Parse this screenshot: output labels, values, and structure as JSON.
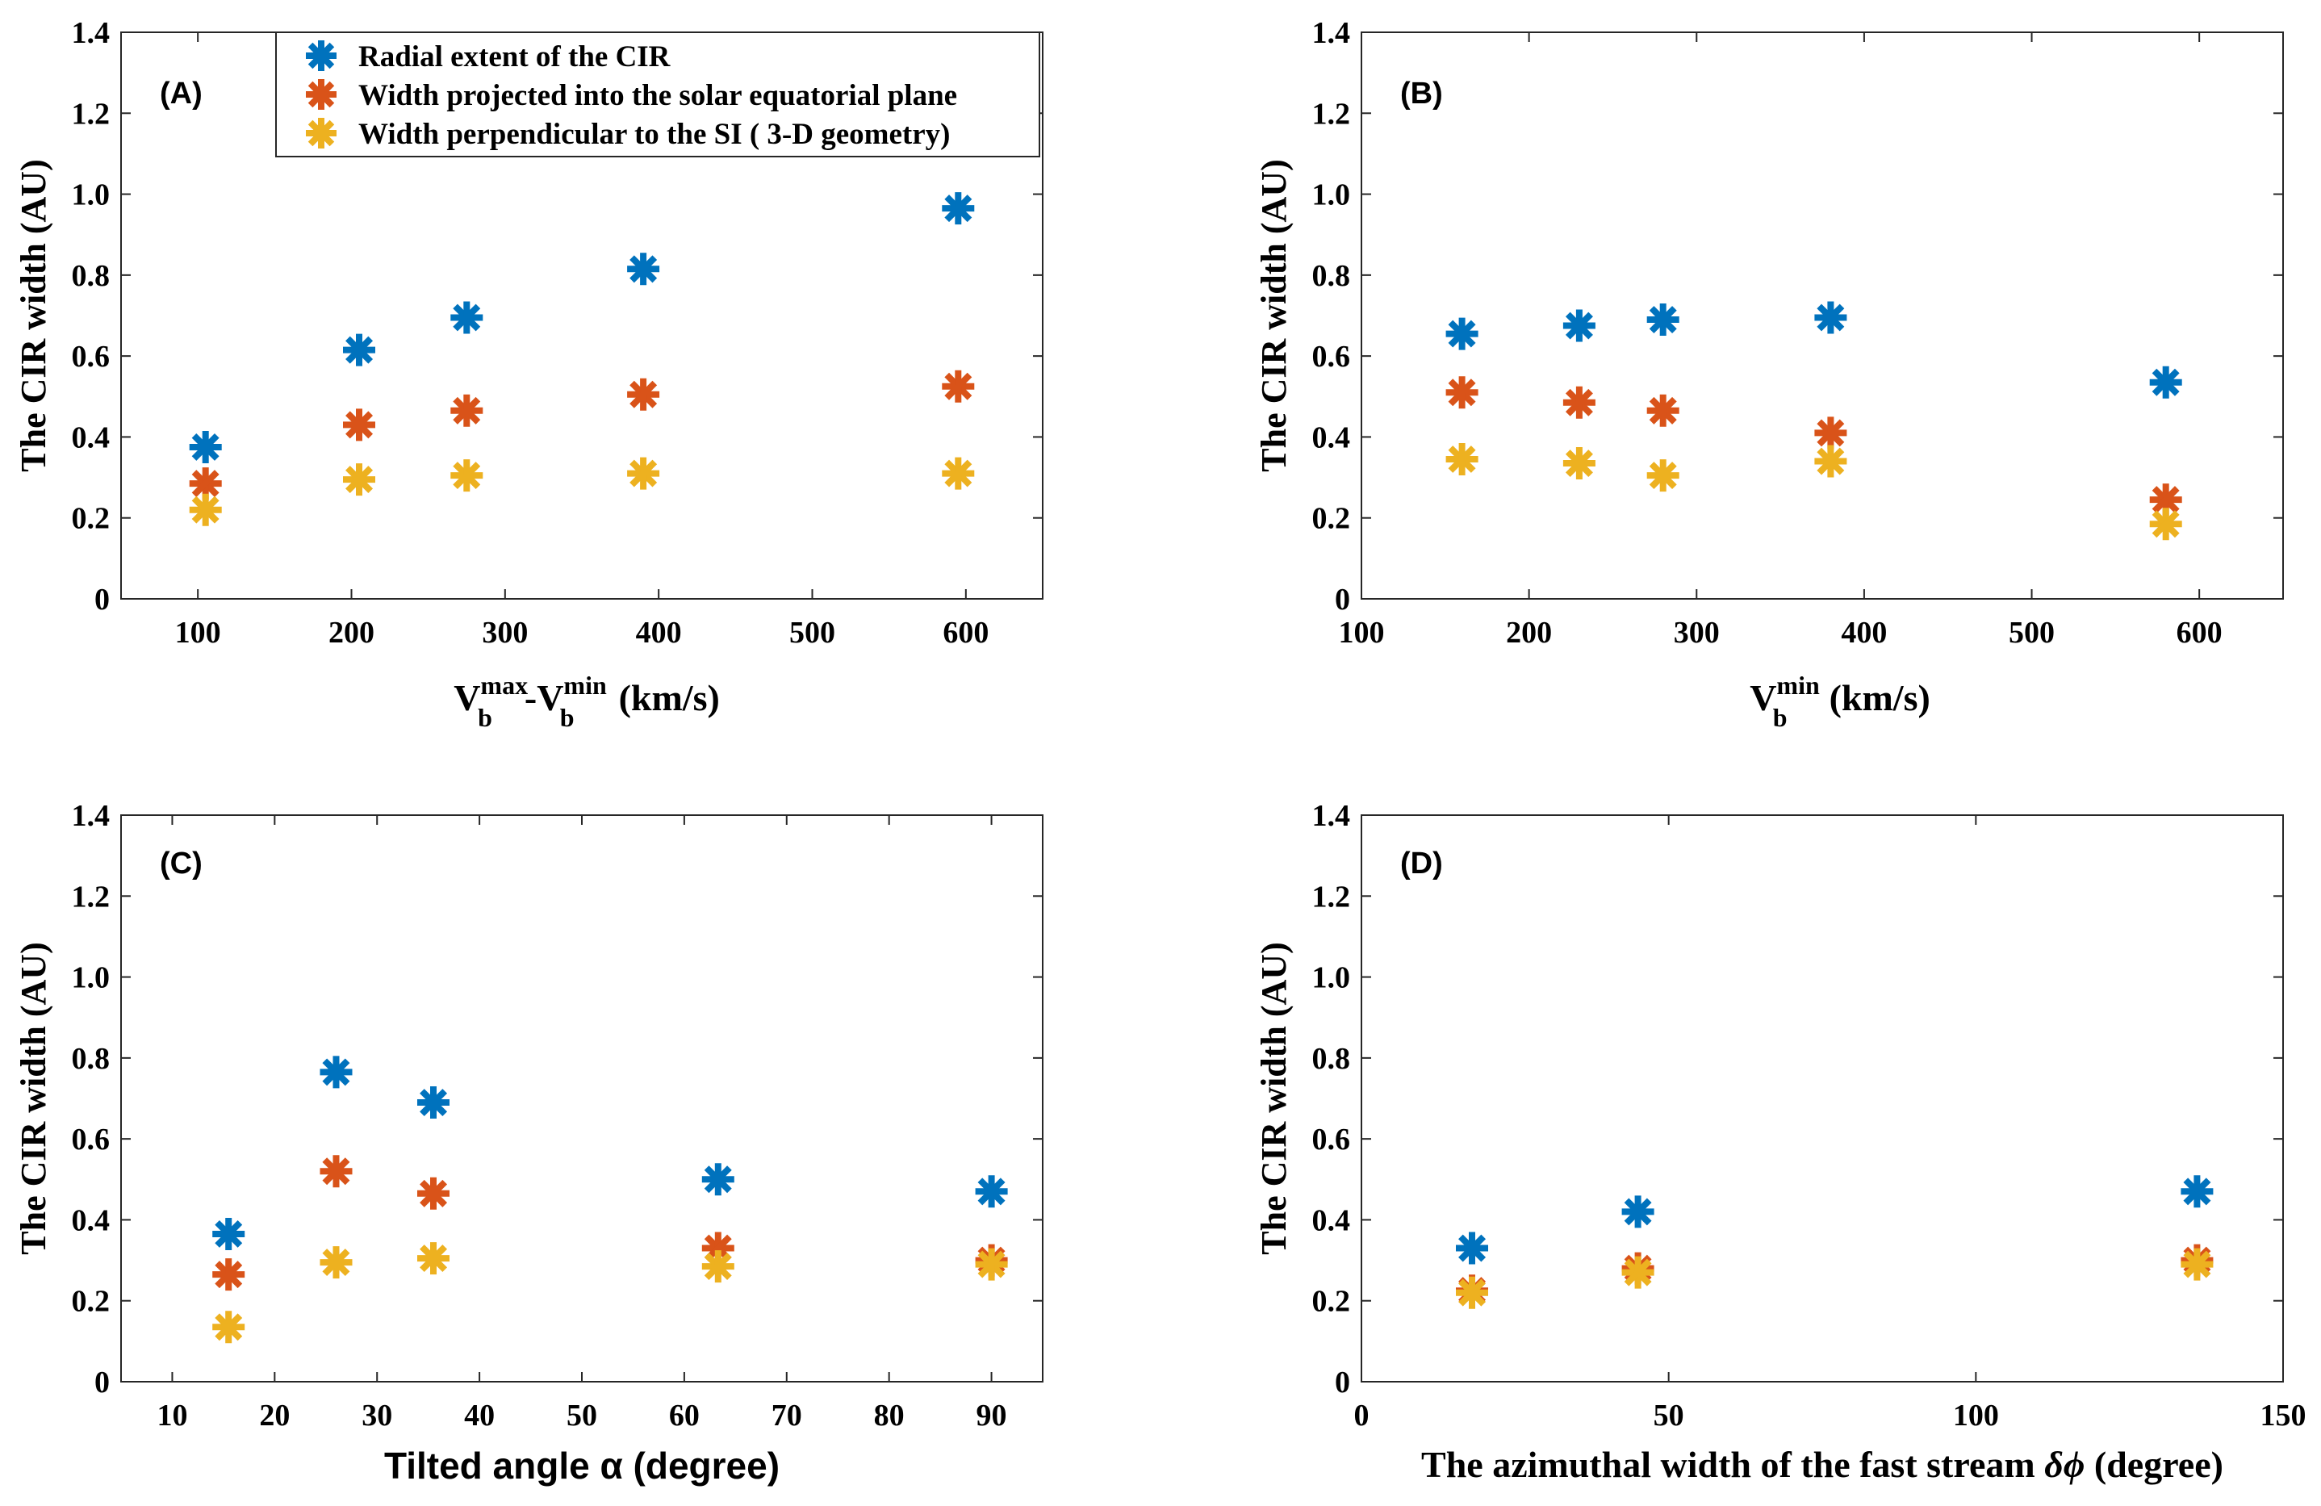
{
  "figure": {
    "colors": {
      "blue": "#0072BD",
      "orange": "#D95319",
      "yellow": "#EDB120"
    },
    "y_axis_label": "The CIR width (AU)",
    "legend": [
      {
        "label": "Radial extent of the CIR",
        "color": "#0072BD"
      },
      {
        "label": "Width projected into the solar equatorial plane",
        "color": "#D95319"
      },
      {
        "label": "Width perpendicular to the SI ( 3-D geometry)",
        "color": "#EDB120"
      }
    ],
    "x_labels": {
      "A": {
        "v1": "V",
        "sup1": "max",
        "sub1": "b",
        "dash": "-V",
        "sup2": "min",
        "sub2": "b",
        "units": "(km/s)"
      },
      "B": {
        "v": "V",
        "sup": "min",
        "sub": "b",
        "units": "(km/s)"
      },
      "C": {
        "text": "Tilted angle α (degree)"
      },
      "D": {
        "text": "The azimuthal width of the fast stream ",
        "symbol": "δϕ",
        "units": " (degree)"
      }
    }
  },
  "chart_data": [
    {
      "panel": "(A)",
      "type": "scatter",
      "xlim": [
        50,
        650
      ],
      "xticks": [
        100,
        200,
        300,
        400,
        500,
        600
      ],
      "ylim": [
        0,
        1.4
      ],
      "yticks": [
        0,
        0.2,
        0.4,
        0.6,
        0.8,
        1.0,
        1.2,
        1.4
      ],
      "ytick_labels": [
        "0",
        "0.2",
        "0.4",
        "0.6",
        "0.8",
        "1.0",
        "1.2",
        "1.4"
      ],
      "ylabel": "The CIR width (AU)",
      "x": [
        105,
        205,
        275,
        390,
        595
      ],
      "series": [
        {
          "name": "Radial extent of the CIR",
          "values": [
            0.375,
            0.615,
            0.695,
            0.815,
            0.965
          ]
        },
        {
          "name": "Width projected into the solar equatorial plane",
          "values": [
            0.285,
            0.43,
            0.465,
            0.505,
            0.525
          ]
        },
        {
          "name": "Width perpendicular to the SI ( 3-D geometry)",
          "values": [
            0.22,
            0.295,
            0.305,
            0.31,
            0.31
          ]
        }
      ]
    },
    {
      "panel": "(B)",
      "type": "scatter",
      "xlim": [
        100,
        650
      ],
      "xticks": [
        100,
        200,
        300,
        400,
        500,
        600
      ],
      "ylim": [
        0,
        1.4
      ],
      "yticks": [
        0,
        0.2,
        0.4,
        0.6,
        0.8,
        1.0,
        1.2,
        1.4
      ],
      "ytick_labels": [
        "0",
        "0.2",
        "0.4",
        "0.6",
        "0.8",
        "1.0",
        "1.2",
        "1.4"
      ],
      "ylabel": "The CIR width (AU)",
      "x": [
        160,
        230,
        280,
        380,
        580
      ],
      "series": [
        {
          "name": "Radial extent of the CIR",
          "values": [
            0.655,
            0.675,
            0.69,
            0.695,
            0.535
          ]
        },
        {
          "name": "Width projected into the solar equatorial plane",
          "values": [
            0.51,
            0.485,
            0.465,
            0.41,
            0.245
          ]
        },
        {
          "name": "Width perpendicular to the SI ( 3-D geometry)",
          "values": [
            0.345,
            0.335,
            0.305,
            0.34,
            0.185
          ]
        }
      ]
    },
    {
      "panel": "(C)",
      "type": "scatter",
      "xlim": [
        5,
        95
      ],
      "xticks": [
        10,
        20,
        30,
        40,
        50,
        60,
        70,
        80,
        90
      ],
      "ylim": [
        0,
        1.4
      ],
      "yticks": [
        0,
        0.2,
        0.4,
        0.6,
        0.8,
        1.0,
        1.2,
        1.4
      ],
      "ytick_labels": [
        "0",
        "0.2",
        "0.4",
        "0.6",
        "0.8",
        "1.0",
        "1.2",
        "1.4"
      ],
      "ylabel": "The CIR width (AU)",
      "x": [
        15.5,
        26,
        35.5,
        63.3,
        90
      ],
      "series": [
        {
          "name": "Radial extent of the CIR",
          "values": [
            0.365,
            0.765,
            0.69,
            0.5,
            0.47
          ]
        },
        {
          "name": "Width projected into the solar equatorial plane",
          "values": [
            0.265,
            0.52,
            0.465,
            0.33,
            0.3
          ]
        },
        {
          "name": "Width perpendicular to the SI ( 3-D geometry)",
          "values": [
            0.135,
            0.295,
            0.305,
            0.285,
            0.29
          ]
        }
      ]
    },
    {
      "panel": "(D)",
      "type": "scatter",
      "xlim": [
        0,
        150
      ],
      "xticks": [
        0,
        50,
        100,
        150
      ],
      "ylim": [
        0,
        1.4
      ],
      "yticks": [
        0,
        0.2,
        0.4,
        0.6,
        0.8,
        1.0,
        1.2,
        1.4
      ],
      "ytick_labels": [
        "0",
        "0.2",
        "0.4",
        "0.6",
        "0.8",
        "1.0",
        "1.2",
        "1.4"
      ],
      "ylabel": "The CIR width (AU)",
      "x": [
        18,
        45,
        136
      ],
      "series": [
        {
          "name": "Radial extent of the CIR",
          "values": [
            0.33,
            0.42,
            0.47
          ]
        },
        {
          "name": "Width projected into the solar equatorial plane",
          "values": [
            0.225,
            0.28,
            0.3
          ]
        },
        {
          "name": "Width perpendicular to the SI ( 3-D geometry)",
          "values": [
            0.22,
            0.27,
            0.29
          ]
        }
      ]
    }
  ]
}
